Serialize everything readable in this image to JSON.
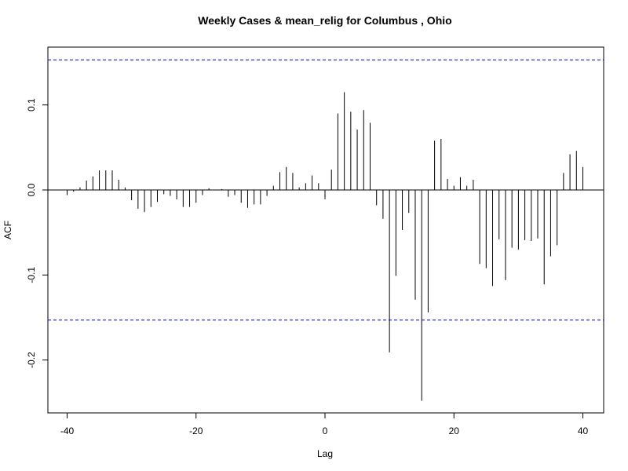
{
  "chart_data": {
    "type": "bar",
    "title": "Weekly Cases & mean_relig for Columbus , Ohio",
    "xlabel": "Lag",
    "ylabel": "ACF",
    "xlim": [
      -40,
      40
    ],
    "ylim": [
      -0.25,
      0.15
    ],
    "x_ticks": [
      -40,
      -20,
      0,
      20,
      40
    ],
    "x_tick_labels": [
      "-40",
      "-20",
      "0",
      "20",
      "40"
    ],
    "y_ticks": [
      -0.2,
      -0.1,
      0.0,
      0.1
    ],
    "y_tick_labels": [
      "-0.2",
      "-0.1",
      "0.0",
      "0.1"
    ],
    "confidence_bound": 0.153,
    "colors": {
      "bars": "#000000",
      "confidence": "#0000cc",
      "zero_line": "#000000",
      "frame": "#000000"
    },
    "grid": false,
    "x": [
      -40,
      -39,
      -38,
      -37,
      -36,
      -35,
      -34,
      -33,
      -32,
      -31,
      -30,
      -29,
      -28,
      -27,
      -26,
      -25,
      -24,
      -23,
      -22,
      -21,
      -20,
      -19,
      -18,
      -17,
      -16,
      -15,
      -14,
      -13,
      -12,
      -11,
      -10,
      -9,
      -8,
      -7,
      -6,
      -5,
      -4,
      -3,
      -2,
      -1,
      0,
      1,
      2,
      3,
      4,
      5,
      6,
      7,
      8,
      9,
      10,
      11,
      12,
      13,
      14,
      15,
      16,
      17,
      18,
      19,
      20,
      21,
      22,
      23,
      24,
      25,
      26,
      27,
      28,
      29,
      30,
      31,
      32,
      33,
      34,
      35,
      36,
      37,
      38,
      39,
      40
    ],
    "values": [
      -0.006,
      -0.002,
      0.003,
      0.011,
      0.016,
      0.023,
      0.023,
      0.023,
      0.012,
      0.003,
      -0.012,
      -0.022,
      -0.026,
      -0.02,
      -0.014,
      -0.005,
      -0.007,
      -0.011,
      -0.02,
      -0.02,
      -0.015,
      -0.006,
      0.002,
      0.0,
      0.001,
      -0.008,
      -0.006,
      -0.015,
      -0.021,
      -0.017,
      -0.017,
      -0.007,
      0.005,
      0.021,
      0.027,
      0.02,
      0.003,
      0.008,
      0.017,
      0.008,
      -0.011,
      0.024,
      0.09,
      0.115,
      0.092,
      0.071,
      0.094,
      0.079,
      -0.018,
      -0.034,
      -0.191,
      -0.101,
      -0.047,
      -0.027,
      -0.129,
      -0.248,
      -0.144,
      0.058,
      0.06,
      0.013,
      0.005,
      0.015,
      0.005,
      0.012,
      -0.087,
      -0.092,
      -0.113,
      -0.058,
      -0.106,
      -0.068,
      -0.07,
      -0.059,
      -0.06,
      -0.057,
      -0.111,
      -0.078,
      -0.065,
      0.02,
      0.042,
      0.046,
      0.027
    ]
  }
}
